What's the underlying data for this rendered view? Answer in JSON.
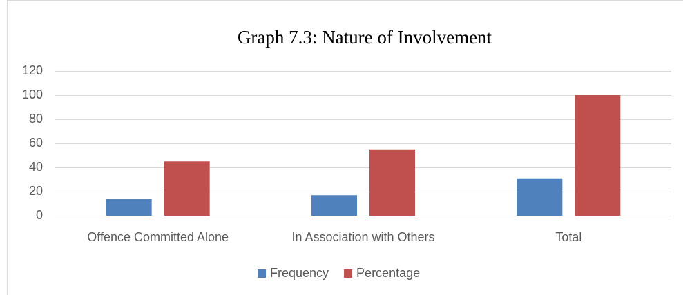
{
  "chart_data": {
    "type": "bar",
    "title": "Graph 7.3: Nature of Involvement",
    "categories": [
      "Offence Committed Alone",
      "In Association with Others",
      "Total"
    ],
    "series": [
      {
        "name": "Frequency",
        "color": "#4f81bd",
        "values": [
          14,
          17,
          31
        ]
      },
      {
        "name": "Percentage",
        "color": "#c0504d",
        "values": [
          45,
          55,
          100
        ]
      }
    ],
    "ylim": [
      0,
      120
    ],
    "yticks": [
      0,
      20,
      40,
      60,
      80,
      100,
      120
    ],
    "grid": true,
    "legend": "bottom"
  }
}
